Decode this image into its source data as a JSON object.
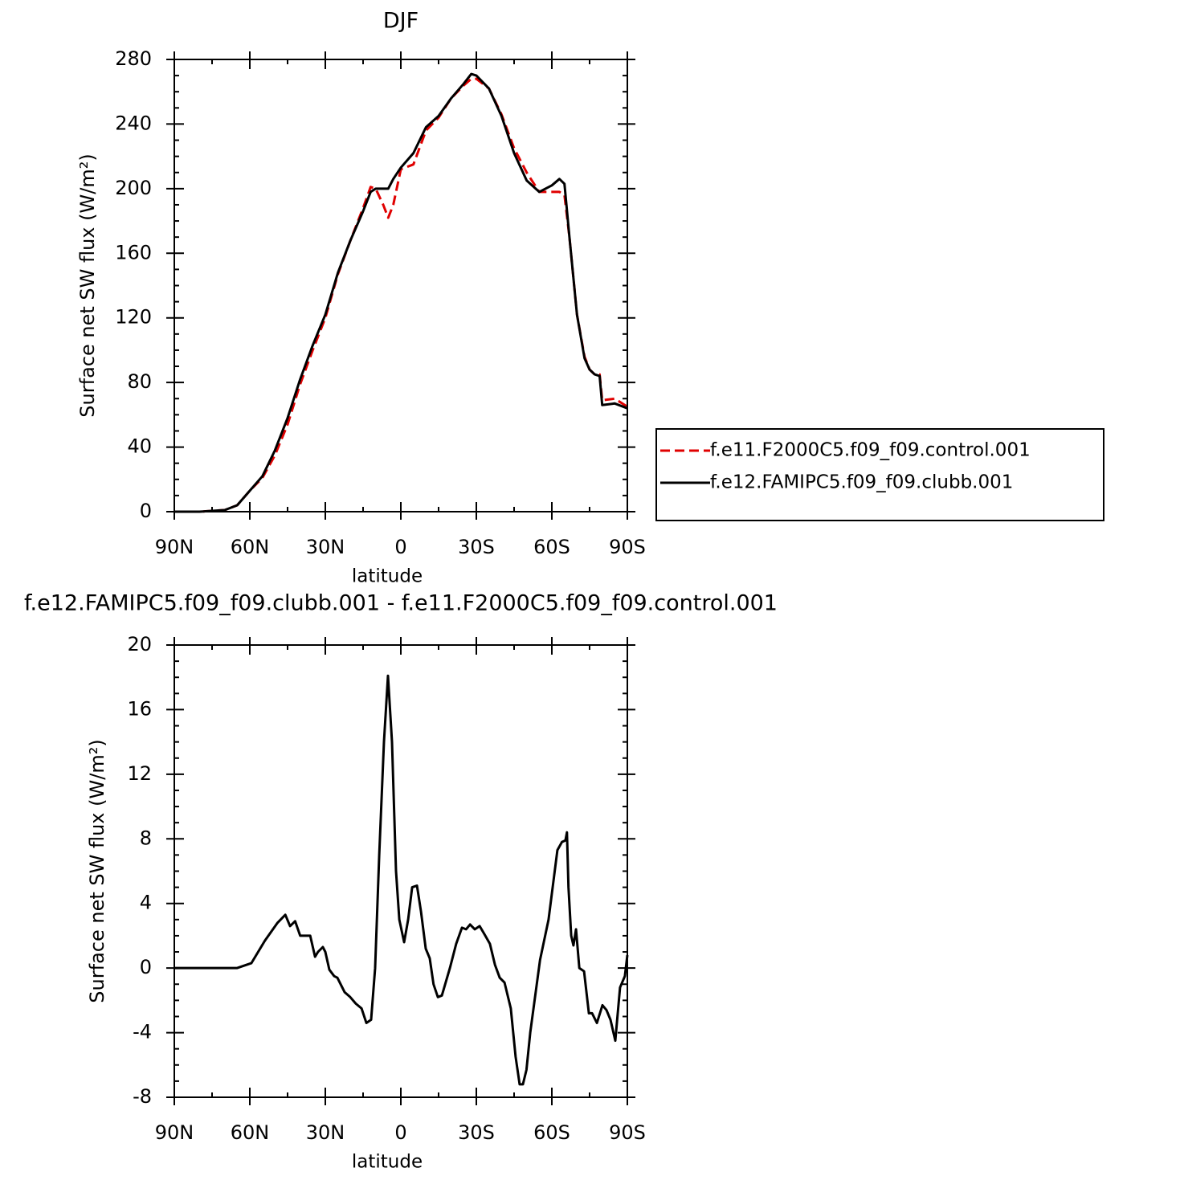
{
  "chart_data": [
    {
      "type": "line",
      "title": "DJF",
      "xlabel": "latitude",
      "ylabel": "Surface net SW flux (W/m²)",
      "x": [
        90,
        80,
        70,
        65,
        60,
        55,
        50,
        45,
        40,
        35,
        30,
        25,
        20,
        15,
        12,
        10,
        7,
        5,
        3,
        0,
        -5,
        -10,
        -15,
        -20,
        -25,
        -28,
        -30,
        -35,
        -40,
        -45,
        -50,
        -55,
        -60,
        -63,
        -65,
        -67,
        -70,
        -73,
        -75,
        -77,
        -79,
        -80,
        -85,
        -90
      ],
      "series": [
        {
          "name": "f.e11.F2000C5.f09_f09.control.001",
          "color": "#e00000",
          "line_style": "dashed",
          "values": [
            0,
            0,
            1,
            4,
            13,
            21,
            35,
            54,
            79,
            100,
            120,
            147,
            168,
            188,
            201,
            200,
            190,
            182,
            190,
            212,
            215,
            236,
            244,
            256,
            264,
            268,
            268,
            262,
            246,
            225,
            210,
            198,
            198,
            198,
            196,
            170,
            122,
            96,
            88,
            85,
            85,
            69,
            70,
            65
          ]
        },
        {
          "name": "f.e12.FAMIPC5.f09_f09.clubb.001",
          "color": "#000000",
          "line_style": "solid",
          "values": [
            0,
            0,
            1,
            4,
            13,
            22,
            38,
            58,
            82,
            103,
            122,
            148,
            168,
            186,
            198,
            200,
            200,
            200,
            206,
            213,
            222,
            238,
            245,
            256,
            265,
            271,
            270,
            262,
            245,
            222,
            205,
            198,
            202,
            206,
            203,
            170,
            122,
            95,
            88,
            85,
            84,
            66,
            67,
            64
          ]
        }
      ],
      "xlim": [
        90,
        -90
      ],
      "xticks": [
        {
          "value": 90,
          "label": "90N"
        },
        {
          "value": 60,
          "label": "60N"
        },
        {
          "value": 30,
          "label": "30N"
        },
        0,
        {
          "value": -30,
          "label": "30S"
        },
        {
          "value": -60,
          "label": "60S"
        },
        {
          "value": -90,
          "label": "90S"
        }
      ],
      "ylim": [
        0,
        280
      ],
      "yticks": [
        0,
        40,
        80,
        120,
        160,
        200,
        240,
        280
      ],
      "legend": "right"
    },
    {
      "type": "line",
      "title": "f.e12.FAMIPC5.f09_f09.clubb.001 - f.e11.F2000C5.f09_f09.control.001",
      "xlabel": "latitude",
      "ylabel": "Surface net SW flux (W/m²)",
      "x": [
        90,
        80,
        70,
        65,
        59.4,
        54,
        49,
        45.9,
        44,
        42,
        40,
        36,
        34.1,
        32.9,
        31,
        30,
        28.4,
        26.5,
        25.2,
        22.3,
        20.1,
        17.9,
        15.6,
        13.7,
        11.8,
        10.2,
        8.6,
        6.7,
        5.1,
        3.5,
        1.9,
        0.6,
        -1.3,
        -2.9,
        -4.5,
        -6.4,
        -8,
        -9.9,
        -11.5,
        -13,
        -14.7,
        -16.3,
        -19.5,
        -22,
        -24.3,
        -25.9,
        -27.5,
        -29.4,
        -31.3,
        -33.2,
        -35.4,
        -37.4,
        -39.3,
        -41.2,
        -43.7,
        -45.6,
        -47.2,
        -48.5,
        -49.9,
        -51.4,
        -55.3,
        -58.7,
        -62.2,
        -64,
        -65.4,
        -66,
        -66.6,
        -67.7,
        -68.6,
        -69.6,
        -70.9,
        -72.8,
        -74.7,
        -76,
        -77.9,
        -80.1,
        -81.7,
        -83.3,
        -85.2,
        -87.1,
        -89,
        -90
      ],
      "values": [
        0,
        0,
        0,
        0,
        0.3,
        1.7,
        2.8,
        3.3,
        2.6,
        2.9,
        2.0,
        2.0,
        0.7,
        1.0,
        1.3,
        1.0,
        -0.1,
        -0.5,
        -0.6,
        -1.5,
        -1.8,
        -2.2,
        -2.5,
        -3.4,
        -3.2,
        0,
        7,
        14,
        18.1,
        14,
        6,
        3,
        1.6,
        3,
        5,
        5.1,
        3.5,
        1.2,
        0.6,
        -1.0,
        -1.8,
        -1.7,
        0,
        1.5,
        2.5,
        2.4,
        2.7,
        2.4,
        2.6,
        2.1,
        1.5,
        0.2,
        -0.6,
        -0.9,
        -2.5,
        -5.5,
        -7.2,
        -7.2,
        -6.3,
        -4,
        0.5,
        3,
        7.3,
        7.8,
        7.9,
        8.4,
        5,
        2,
        1.4,
        2.4,
        0,
        -0.2,
        -2.8,
        -2.8,
        -3.4,
        -2.3,
        -2.6,
        -3.2,
        -4.5,
        -1.2,
        -0.5,
        0.8
      ],
      "color": "#000000",
      "xlim": [
        90,
        -90
      ],
      "xticks": [
        {
          "value": 90,
          "label": "90N"
        },
        {
          "value": 60,
          "label": "60N"
        },
        {
          "value": 30,
          "label": "30N"
        },
        0,
        {
          "value": -30,
          "label": "30S"
        },
        {
          "value": -60,
          "label": "60S"
        },
        {
          "value": -90,
          "label": "90S"
        }
      ],
      "ylim": [
        -8,
        20
      ],
      "yticks": [
        -8,
        -4,
        0,
        4,
        8,
        12,
        16,
        20
      ]
    }
  ]
}
